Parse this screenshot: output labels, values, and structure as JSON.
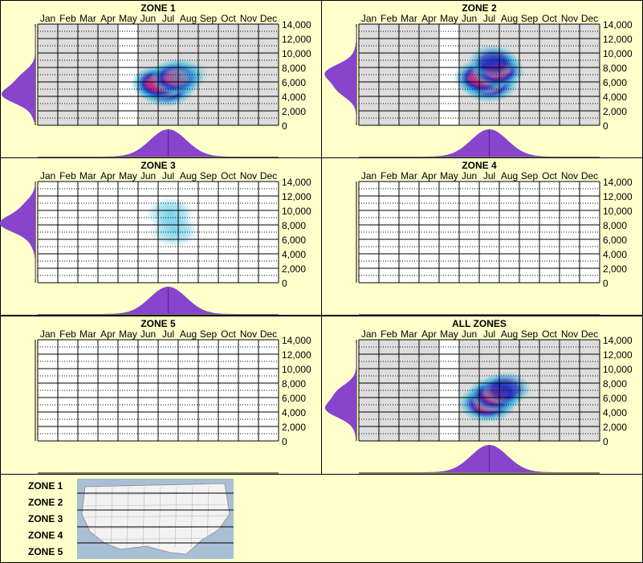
{
  "months": [
    "Jan",
    "Feb",
    "Mar",
    "Apr",
    "May",
    "Jun",
    "Jul",
    "Aug",
    "Sep",
    "Oct",
    "Nov",
    "Dec"
  ],
  "y_ticks": [
    "14,000",
    "12,000",
    "10,000",
    "8,000",
    "6,000",
    "4,000",
    "2,000",
    "0"
  ],
  "colors": {
    "background": "#ffffcc",
    "panel_border": "#000000",
    "grid_fill_sampled": "#dddddd",
    "grid_fill_unsampled": "#ffffff",
    "density_fill": "#8844cc",
    "heat_low": "#40c0e0",
    "heat_mid": "#2030c0",
    "heat_high": "#e0207a"
  },
  "chart_data": [
    {
      "type": "heatmap",
      "title": "ZONE 1",
      "x_categories": [
        "Jan",
        "Feb",
        "Mar",
        "Apr",
        "May",
        "Jun",
        "Jul",
        "Aug",
        "Sep",
        "Oct",
        "Nov",
        "Dec"
      ],
      "ylim": [
        0,
        14000
      ],
      "sampled_months": [
        "Jan",
        "Feb",
        "Mar",
        "Apr",
        "Jun",
        "Jul",
        "Aug",
        "Sep",
        "Oct",
        "Nov",
        "Dec"
      ],
      "hotspots": [
        {
          "month": 6.9,
          "elevation": 5200,
          "intensity": 1.0
        },
        {
          "month": 6.5,
          "elevation": 5800,
          "intensity": 0.8
        },
        {
          "month": 7.4,
          "elevation": 6600,
          "intensity": 0.75
        },
        {
          "month": 7.8,
          "elevation": 7000,
          "intensity": 0.45
        }
      ],
      "month_density_peak": 7.0,
      "elevation_density_peak": 4800
    },
    {
      "type": "heatmap",
      "title": "ZONE 2",
      "x_categories": [
        "Jan",
        "Feb",
        "Mar",
        "Apr",
        "May",
        "Jun",
        "Jul",
        "Aug",
        "Sep",
        "Oct",
        "Nov",
        "Dec"
      ],
      "ylim": [
        0,
        14000
      ],
      "sampled_months": [
        "Jan",
        "Feb",
        "Mar",
        "Apr",
        "Jun",
        "Jul",
        "Aug",
        "Sep",
        "Oct",
        "Nov",
        "Dec"
      ],
      "hotspots": [
        {
          "month": 7.0,
          "elevation": 5800,
          "intensity": 1.0
        },
        {
          "month": 6.6,
          "elevation": 6600,
          "intensity": 0.85
        },
        {
          "month": 7.4,
          "elevation": 7600,
          "intensity": 0.8
        },
        {
          "month": 7.2,
          "elevation": 8800,
          "intensity": 0.5
        }
      ],
      "month_density_peak": 7.0,
      "elevation_density_peak": 6500
    },
    {
      "type": "heatmap",
      "title": "ZONE 3",
      "x_categories": [
        "Jan",
        "Feb",
        "Mar",
        "Apr",
        "May",
        "Jun",
        "Jul",
        "Aug",
        "Sep",
        "Oct",
        "Nov",
        "Dec"
      ],
      "ylim": [
        0,
        14000
      ],
      "sampled_months": [],
      "hotspots": [
        {
          "month": 7.1,
          "elevation": 9600,
          "intensity": 0.35
        },
        {
          "month": 7.3,
          "elevation": 7200,
          "intensity": 0.4
        }
      ],
      "month_density_peak": 7.0,
      "elevation_density_peak": 8500
    },
    {
      "type": "heatmap",
      "title": "ZONE 4",
      "x_categories": [
        "Jan",
        "Feb",
        "Mar",
        "Apr",
        "May",
        "Jun",
        "Jul",
        "Aug",
        "Sep",
        "Oct",
        "Nov",
        "Dec"
      ],
      "ylim": [
        0,
        14000
      ],
      "sampled_months": [],
      "hotspots": [],
      "month_density_peak": null,
      "elevation_density_peak": null
    },
    {
      "type": "heatmap",
      "title": "ZONE 5",
      "x_categories": [
        "Jan",
        "Feb",
        "Mar",
        "Apr",
        "May",
        "Jun",
        "Jul",
        "Aug",
        "Sep",
        "Oct",
        "Nov",
        "Dec"
      ],
      "ylim": [
        0,
        14000
      ],
      "sampled_months": [],
      "hotspots": [],
      "month_density_peak": null,
      "elevation_density_peak": null
    },
    {
      "type": "heatmap",
      "title": "ALL ZONES",
      "x_categories": [
        "Jan",
        "Feb",
        "Mar",
        "Apr",
        "May",
        "Jun",
        "Jul",
        "Aug",
        "Sep",
        "Oct",
        "Nov",
        "Dec"
      ],
      "ylim": [
        0,
        14000
      ],
      "sampled_months": [
        "Jan",
        "Feb",
        "Mar",
        "Apr",
        "Jun",
        "Jul",
        "Aug",
        "Sep",
        "Oct",
        "Nov",
        "Dec"
      ],
      "hotspots": [
        {
          "month": 6.9,
          "elevation": 5200,
          "intensity": 1.0
        },
        {
          "month": 7.3,
          "elevation": 6400,
          "intensity": 0.85
        },
        {
          "month": 7.8,
          "elevation": 7200,
          "intensity": 0.55
        }
      ],
      "month_density_peak": 7.0,
      "elevation_density_peak": 5200
    }
  ],
  "legend": {
    "zones": [
      "ZONE 1",
      "ZONE 2",
      "ZONE 3",
      "ZONE 4",
      "ZONE 5"
    ],
    "map_icon": "usa-map-icon"
  }
}
